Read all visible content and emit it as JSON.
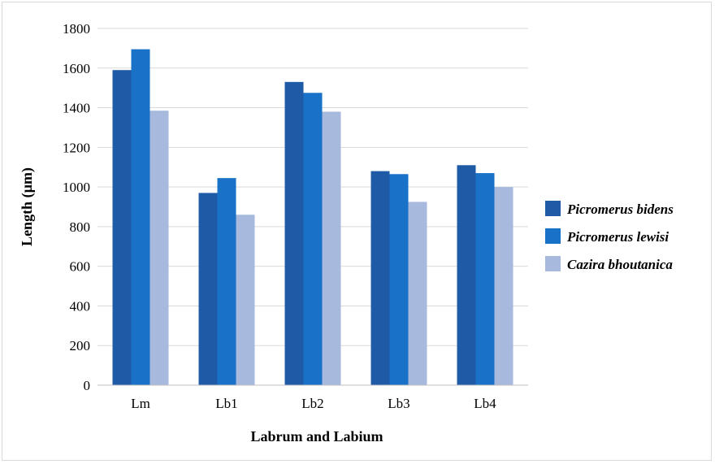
{
  "chart_data": {
    "type": "bar",
    "categories": [
      "Lm",
      "Lb1",
      "Lb2",
      "Lb3",
      "Lb4"
    ],
    "series": [
      {
        "name": "Picromerus bidens",
        "color": "#1f5aa6",
        "values": [
          1590,
          970,
          1530,
          1080,
          1110
        ]
      },
      {
        "name": "Picromerus lewisi",
        "color": "#1a72c8",
        "values": [
          1695,
          1045,
          1475,
          1065,
          1070
        ]
      },
      {
        "name": "Cazira bhoutanica",
        "color": "#a8b9de",
        "values": [
          1385,
          860,
          1380,
          925,
          1000
        ]
      }
    ],
    "xlabel": "Labrum and Labium",
    "ylabel": "Length (µm)",
    "ylim": [
      0,
      1800
    ],
    "yticks": [
      0,
      200,
      400,
      600,
      800,
      1000,
      1200,
      1400,
      1600,
      1800
    ],
    "grid": true,
    "legend_position": "right"
  }
}
